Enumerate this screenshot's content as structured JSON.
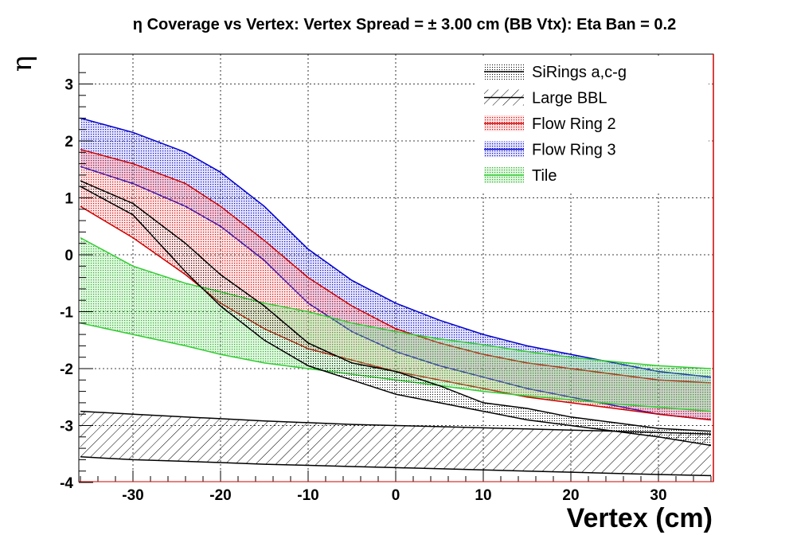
{
  "chart_data": {
    "type": "area",
    "title": "η Coverage vs Vertex: Vertex Spread = ± 3.00 cm (BB Vtx): Eta Ban = 0.2",
    "xlabel": "Vertex (cm)",
    "ylabel": "η",
    "xlim": [
      -36,
      36
    ],
    "ylim": [
      -4,
      3.5
    ],
    "x_ticks": [
      -30,
      -20,
      -10,
      0,
      10,
      20,
      30
    ],
    "y_ticks": [
      -4,
      -3,
      -2,
      -1,
      0,
      1,
      2,
      3
    ],
    "grid": true,
    "legend_position": "top-right",
    "x": [
      -36,
      -30,
      -24,
      -20,
      -15,
      -10,
      -5,
      0,
      5,
      10,
      15,
      20,
      25,
      30,
      36
    ],
    "series": [
      {
        "name": "SiRings a,c-g",
        "color": "#000000",
        "fill": "dots",
        "upper": [
          1.3,
          0.9,
          0.2,
          -0.35,
          -0.9,
          -1.55,
          -1.9,
          -2.05,
          -2.3,
          -2.6,
          -2.7,
          -2.85,
          -2.95,
          -3.05,
          -3.1
        ],
        "lower": [
          1.2,
          0.7,
          -0.3,
          -0.9,
          -1.5,
          -1.95,
          -2.2,
          -2.45,
          -2.6,
          -2.75,
          -2.9,
          -3.0,
          -3.1,
          -3.2,
          -3.35
        ]
      },
      {
        "name": "Large BBL",
        "color": "#000000",
        "fill": "hatch",
        "upper": [
          -2.75,
          -2.8,
          -2.85,
          -2.88,
          -2.92,
          -2.95,
          -2.98,
          -3.0,
          -3.02,
          -3.04,
          -3.06,
          -3.08,
          -3.1,
          -3.12,
          -3.15
        ],
        "lower": [
          -3.55,
          -3.6,
          -3.63,
          -3.65,
          -3.68,
          -3.7,
          -3.72,
          -3.74,
          -3.76,
          -3.78,
          -3.8,
          -3.82,
          -3.84,
          -3.86,
          -3.88
        ]
      },
      {
        "name": "Flow Ring 2",
        "color": "#cc0000",
        "fill": "red dots",
        "upper": [
          1.85,
          1.6,
          1.25,
          0.85,
          0.25,
          -0.4,
          -0.9,
          -1.3,
          -1.55,
          -1.75,
          -1.9,
          -2.0,
          -2.1,
          -2.2,
          -2.25
        ],
        "lower": [
          0.85,
          0.3,
          -0.35,
          -0.85,
          -1.3,
          -1.65,
          -1.85,
          -2.05,
          -2.2,
          -2.35,
          -2.5,
          -2.6,
          -2.7,
          -2.8,
          -2.9
        ]
      },
      {
        "name": "Flow Ring 3",
        "color": "#0000cc",
        "fill": "blue dots",
        "upper": [
          2.4,
          2.15,
          1.8,
          1.45,
          0.85,
          0.1,
          -0.45,
          -0.85,
          -1.15,
          -1.4,
          -1.6,
          -1.75,
          -1.9,
          -2.05,
          -2.15
        ],
        "lower": [
          1.55,
          1.25,
          0.85,
          0.5,
          -0.1,
          -0.85,
          -1.35,
          -1.7,
          -1.95,
          -2.15,
          -2.35,
          -2.5,
          -2.65,
          -2.8,
          -2.9
        ]
      },
      {
        "name": "Tile",
        "color": "#33cc33",
        "fill": "green dots",
        "upper": [
          0.3,
          -0.2,
          -0.5,
          -0.65,
          -0.85,
          -1.0,
          -1.2,
          -1.35,
          -1.48,
          -1.58,
          -1.7,
          -1.8,
          -1.88,
          -1.95,
          -2.0
        ],
        "lower": [
          -1.2,
          -1.4,
          -1.6,
          -1.75,
          -1.9,
          -2.0,
          -2.1,
          -2.2,
          -2.3,
          -2.4,
          -2.48,
          -2.55,
          -2.62,
          -2.68,
          -2.75
        ]
      }
    ]
  }
}
